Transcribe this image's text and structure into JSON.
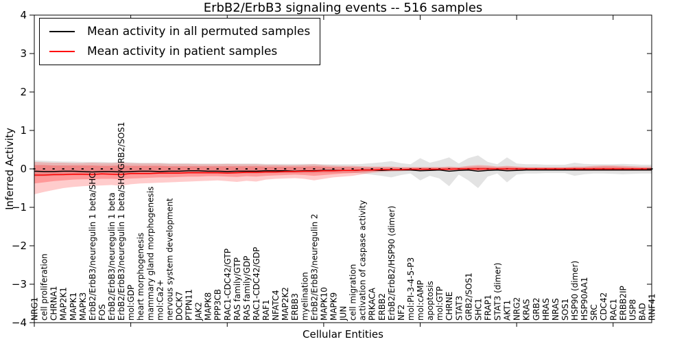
{
  "chart": {
    "title": "ErbB2/ErbB3 signaling events -- 516 samples",
    "xlabel": "Cellular Entities",
    "ylabel": "Inferred Activity"
  },
  "legend": {
    "entries": [
      {
        "label": "Mean activity in all permuted samples",
        "color": "#000000"
      },
      {
        "label": "Mean activity in patient samples",
        "color": "#ff0000"
      }
    ],
    "position": "upper left"
  },
  "chart_data": {
    "type": "line",
    "title": "ErbB2/ErbB3 signaling events -- 516 samples",
    "xlabel": "Cellular Entities",
    "ylabel": "Inferred Activity",
    "ylim": [
      -4,
      4
    ],
    "yticks_values": [
      4,
      3,
      2,
      1,
      0,
      -1,
      -2,
      -3,
      -4
    ],
    "yticks_labels": [
      "4",
      "3",
      "2",
      "1",
      "0",
      "−1",
      "−2",
      "−3",
      "−4"
    ],
    "major_tick_every": 10,
    "grid": false,
    "legend_position": "upper left",
    "baseline": {
      "value": 0,
      "style": "dotted",
      "color": "#000000"
    },
    "categories": [
      "NRG1",
      "cell proliferation",
      "CHRNA1",
      "MAP2K1",
      "MAPK1",
      "MAPK3",
      "ErbB2/ErbB3/neuregulin 1 beta/SHC",
      "FOS",
      "ErbB2/ErbB3/neuregulin 1 beta",
      "ErbB2/ErbB3/neuregulin 1 beta/SHC/GRB2/SOS1",
      "mol:GDP",
      "heart morphogenesis",
      "mammary gland morphogenesis",
      "mol:Ca2+",
      "nervous system development",
      "DOCK7",
      "PTPN11",
      "JAK2",
      "MAPK8",
      "PPP3CB",
      "RAC1-CDC42/GTP",
      "RAS family/GTP",
      "RAS family/GDP",
      "RAC1-CDC42/GDP",
      "RAF1",
      "NFATC4",
      "MAP2K2",
      "ERBB3",
      "myelination",
      "ErbB2/ErbB3/neuregulin 2",
      "MAPK10",
      "MAPK9",
      "JUN",
      "cell migration",
      "activation of caspase activity",
      "PRKACA",
      "ERBB2",
      "ErbB2/ErbB2/HSP90 (dimer)",
      "NF2",
      "mol:PI-3-4-5-P3",
      "mol:cAMP",
      "apoptosis",
      "mol:GTP",
      "CHRNE",
      "STAT3",
      "GRB2/SOS1",
      "SHC1",
      "FRAP1",
      "STAT3 (dimer)",
      "AKT1",
      "NRG2",
      "KRAS",
      "GRB2",
      "HRAS",
      "NRAS",
      "SOS1",
      "HSP90 (dimer)",
      "HSP90AA1",
      "SRC",
      "CDC42",
      "RAC1",
      "ERBB2IP",
      "USP8",
      "BAD",
      "RNF41"
    ],
    "series": [
      {
        "name": "Mean activity in all permuted samples",
        "color": "#000000",
        "values": [
          -0.06,
          -0.07,
          -0.07,
          -0.06,
          -0.06,
          -0.07,
          -0.08,
          -0.07,
          -0.07,
          -0.08,
          -0.07,
          -0.06,
          -0.06,
          -0.07,
          -0.06,
          -0.06,
          -0.05,
          -0.05,
          -0.06,
          -0.06,
          -0.07,
          -0.06,
          -0.06,
          -0.06,
          -0.05,
          -0.05,
          -0.05,
          -0.06,
          -0.05,
          -0.05,
          -0.04,
          -0.04,
          -0.04,
          -0.04,
          -0.03,
          -0.03,
          -0.04,
          -0.03,
          -0.03,
          -0.03,
          -0.05,
          -0.04,
          -0.03,
          -0.06,
          -0.04,
          -0.03,
          -0.06,
          -0.04,
          -0.03,
          -0.05,
          -0.04,
          -0.03,
          -0.03,
          -0.03,
          -0.03,
          -0.03,
          -0.03,
          -0.03,
          -0.03,
          -0.03,
          -0.03,
          -0.03,
          -0.03,
          -0.03,
          -0.03
        ]
      },
      {
        "name": "Mean activity in patient samples",
        "color": "#ff0000",
        "values": [
          -0.16,
          -0.16,
          -0.15,
          -0.15,
          -0.14,
          -0.14,
          -0.15,
          -0.13,
          -0.14,
          -0.15,
          -0.12,
          -0.12,
          -0.12,
          -0.11,
          -0.11,
          -0.11,
          -0.1,
          -0.1,
          -0.1,
          -0.1,
          -0.11,
          -0.1,
          -0.09,
          -0.09,
          -0.08,
          -0.08,
          -0.07,
          -0.07,
          -0.06,
          -0.06,
          -0.05,
          -0.05,
          -0.04,
          -0.04,
          -0.03,
          -0.03,
          -0.02,
          -0.02,
          -0.02,
          -0.01,
          -0.01,
          -0.01,
          -0.01,
          -0.01,
          0.0,
          0.0,
          0.0,
          0.0,
          0.0,
          0.0,
          0.0,
          0.0,
          0.0,
          0.0,
          0.0,
          0.0,
          0.0,
          0.0,
          0.0,
          0.0,
          0.0,
          0.0,
          0.0,
          0.0,
          0.0
        ]
      }
    ],
    "bands": [
      {
        "name": "permuted-samples-range",
        "color": "#999999",
        "opacity": 0.28,
        "low": [
          -0.2,
          -0.19,
          -0.18,
          -0.17,
          -0.16,
          -0.16,
          -0.15,
          -0.15,
          -0.15,
          -0.15,
          -0.14,
          -0.14,
          -0.14,
          -0.13,
          -0.13,
          -0.13,
          -0.12,
          -0.12,
          -0.12,
          -0.12,
          -0.12,
          -0.12,
          -0.12,
          -0.12,
          -0.11,
          -0.11,
          -0.11,
          -0.11,
          -0.11,
          -0.11,
          -0.1,
          -0.1,
          -0.1,
          -0.1,
          -0.12,
          -0.15,
          -0.18,
          -0.22,
          -0.16,
          -0.12,
          -0.3,
          -0.18,
          -0.25,
          -0.45,
          -0.15,
          -0.3,
          -0.5,
          -0.2,
          -0.12,
          -0.35,
          -0.15,
          -0.12,
          -0.12,
          -0.11,
          -0.11,
          -0.11,
          -0.18,
          -0.14,
          -0.12,
          -0.12,
          -0.13,
          -0.14,
          -0.13,
          -0.12,
          -0.12
        ],
        "high": [
          0.22,
          0.21,
          0.2,
          0.19,
          0.19,
          0.18,
          0.18,
          0.18,
          0.17,
          0.18,
          0.17,
          0.16,
          0.16,
          0.16,
          0.15,
          0.15,
          0.15,
          0.14,
          0.14,
          0.14,
          0.14,
          0.14,
          0.14,
          0.14,
          0.13,
          0.13,
          0.13,
          0.13,
          0.13,
          0.13,
          0.12,
          0.12,
          0.12,
          0.12,
          0.13,
          0.15,
          0.17,
          0.2,
          0.15,
          0.12,
          0.28,
          0.16,
          0.22,
          0.3,
          0.14,
          0.28,
          0.35,
          0.18,
          0.12,
          0.3,
          0.14,
          0.12,
          0.12,
          0.11,
          0.11,
          0.11,
          0.16,
          0.13,
          0.12,
          0.12,
          0.12,
          0.13,
          0.12,
          0.11,
          0.11
        ]
      },
      {
        "name": "patient-samples-range-outer",
        "color": "#ff0000",
        "opacity": 0.2,
        "low": [
          -0.66,
          -0.6,
          -0.55,
          -0.5,
          -0.47,
          -0.45,
          -0.44,
          -0.43,
          -0.42,
          -0.44,
          -0.4,
          -0.38,
          -0.37,
          -0.36,
          -0.35,
          -0.34,
          -0.33,
          -0.32,
          -0.31,
          -0.3,
          -0.32,
          -0.34,
          -0.31,
          -0.33,
          -0.28,
          -0.26,
          -0.25,
          -0.24,
          -0.26,
          -0.3,
          -0.26,
          -0.22,
          -0.2,
          -0.18,
          -0.14,
          -0.1,
          -0.08,
          -0.07,
          -0.06,
          -0.05,
          -0.05,
          -0.05,
          -0.04,
          -0.05,
          -0.04,
          -0.05,
          -0.06,
          -0.05,
          -0.04,
          -0.04,
          -0.04,
          -0.04,
          -0.04,
          -0.04,
          -0.04,
          -0.04,
          -0.05,
          -0.05,
          -0.05,
          -0.05,
          -0.05,
          -0.05,
          -0.05,
          -0.05,
          -0.05
        ],
        "high": [
          0.18,
          0.17,
          0.16,
          0.16,
          0.15,
          0.15,
          0.16,
          0.15,
          0.15,
          0.16,
          0.15,
          0.14,
          0.14,
          0.14,
          0.13,
          0.13,
          0.13,
          0.12,
          0.12,
          0.12,
          0.13,
          0.12,
          0.12,
          0.12,
          0.11,
          0.11,
          0.1,
          0.1,
          0.11,
          0.12,
          0.1,
          0.09,
          0.08,
          0.08,
          0.07,
          0.06,
          0.06,
          0.06,
          0.05,
          0.05,
          0.05,
          0.05,
          0.05,
          0.06,
          0.05,
          0.08,
          0.1,
          0.09,
          0.06,
          0.08,
          0.06,
          0.05,
          0.05,
          0.05,
          0.05,
          0.05,
          0.06,
          0.06,
          0.08,
          0.09,
          0.09,
          0.08,
          0.07,
          0.06,
          0.06
        ]
      },
      {
        "name": "patient-samples-range-inner",
        "color": "#ff0000",
        "opacity": 0.25,
        "low": [
          -0.38,
          -0.35,
          -0.32,
          -0.3,
          -0.28,
          -0.27,
          -0.27,
          -0.26,
          -0.26,
          -0.27,
          -0.25,
          -0.24,
          -0.23,
          -0.22,
          -0.22,
          -0.21,
          -0.2,
          -0.2,
          -0.19,
          -0.19,
          -0.2,
          -0.21,
          -0.19,
          -0.2,
          -0.18,
          -0.17,
          -0.16,
          -0.15,
          -0.16,
          -0.18,
          -0.16,
          -0.14,
          -0.12,
          -0.11,
          -0.09,
          -0.07,
          -0.05,
          -0.04,
          -0.04,
          -0.03,
          -0.03,
          -0.03,
          -0.03,
          -0.03,
          -0.03,
          -0.03,
          -0.04,
          -0.03,
          -0.03,
          -0.03,
          -0.03,
          -0.03,
          -0.03,
          -0.03,
          -0.03,
          -0.03,
          -0.03,
          -0.03,
          -0.03,
          -0.03,
          -0.03,
          -0.03,
          -0.03,
          -0.03,
          -0.03
        ],
        "high": [
          0.1,
          0.1,
          0.09,
          0.09,
          0.09,
          0.09,
          0.09,
          0.08,
          0.08,
          0.09,
          0.08,
          0.08,
          0.08,
          0.08,
          0.07,
          0.07,
          0.07,
          0.07,
          0.07,
          0.07,
          0.07,
          0.07,
          0.07,
          0.07,
          0.06,
          0.06,
          0.06,
          0.06,
          0.06,
          0.07,
          0.06,
          0.05,
          0.05,
          0.05,
          0.04,
          0.04,
          0.04,
          0.04,
          0.03,
          0.03,
          0.03,
          0.03,
          0.03,
          0.04,
          0.03,
          0.05,
          0.06,
          0.05,
          0.04,
          0.05,
          0.04,
          0.03,
          0.03,
          0.03,
          0.03,
          0.03,
          0.04,
          0.04,
          0.05,
          0.06,
          0.06,
          0.05,
          0.04,
          0.03,
          0.03
        ]
      }
    ]
  }
}
